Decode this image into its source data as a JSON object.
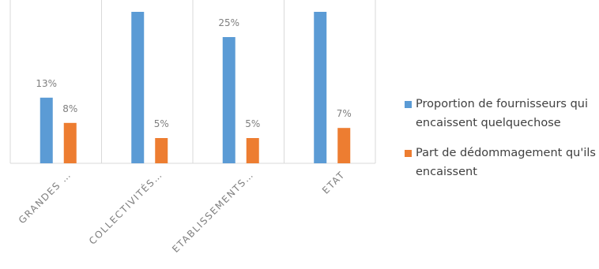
{
  "chart_data": {
    "type": "bar",
    "categories": [
      "GRANDES …",
      "COLLECTIVITÉS…",
      "ETABLISSEMENTS…",
      "ETAT"
    ],
    "series": [
      {
        "name": "Proportion de fournisseurs qui encaissent quelquechose",
        "color": "#5b9bd5",
        "values": [
          13,
          30,
          25,
          30
        ],
        "value_labels": [
          "13%",
          null,
          "25%",
          null
        ]
      },
      {
        "name": "Part de dédommagement qu'ils encaissent",
        "color": "#ed7d31",
        "values": [
          8,
          5,
          5,
          7
        ],
        "value_labels": [
          "8%",
          "5%",
          "5%",
          "7%"
        ]
      }
    ],
    "ylim": [
      0,
      30
    ],
    "legend": "right"
  }
}
